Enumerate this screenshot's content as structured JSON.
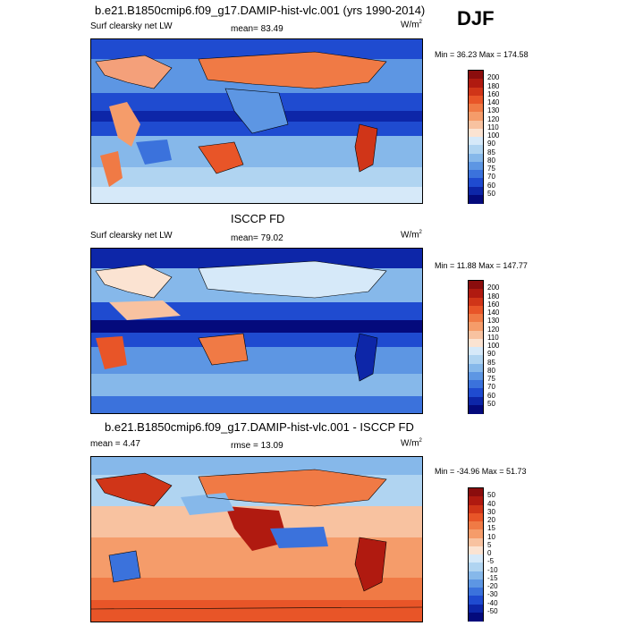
{
  "season": "DJF",
  "panels": [
    {
      "title": "b.e21.B1850cmip6.f09_g17.DAMIP-hist-vlc.001 (yrs 1990-2014)",
      "left": "Surf clearsky net LW",
      "center": "mean=  83.49",
      "units": "W/m",
      "units_sup": "2",
      "minmax": "Min =  36.23 Max = 174.58",
      "levels": [
        "200",
        "180",
        "160",
        "140",
        "130",
        "120",
        "110",
        "100",
        "90",
        "85",
        "80",
        "75",
        "70",
        "60",
        "50"
      ]
    },
    {
      "title": "ISCCP FD",
      "left": "Surf clearsky net LW",
      "center": "mean=  79.02",
      "units": "W/m",
      "units_sup": "2",
      "minmax": "Min =  11.88 Max = 147.77",
      "levels": [
        "200",
        "180",
        "160",
        "140",
        "130",
        "120",
        "110",
        "100",
        "90",
        "85",
        "80",
        "75",
        "70",
        "60",
        "50"
      ]
    },
    {
      "title": "b.e21.B1850cmip6.f09_g17.DAMIP-hist-vlc.001 - ISCCP FD",
      "left": "mean =  4.47",
      "center": "rmse =  13.09",
      "units": "W/m",
      "units_sup": "2",
      "minmax": "Min = -34.96 Max =  51.73",
      "levels": [
        "50",
        "40",
        "30",
        "20",
        "15",
        "10",
        "5",
        "0",
        "-5",
        "-10",
        "-15",
        "-20",
        "-30",
        "-40",
        "-50"
      ]
    }
  ],
  "colors": {
    "scale": [
      "#8b0d0d",
      "#b01a10",
      "#d03518",
      "#e85528",
      "#f07a45",
      "#f59c6a",
      "#f8c2a0",
      "#fbe3d2",
      "#d6e9f9",
      "#b0d4f1",
      "#86b8ea",
      "#5d96e3",
      "#3b72dc",
      "#1f4bd0",
      "#0d26a8",
      "#040a7c"
    ],
    "ocean": "#a8d0ee",
    "land_warm": "#f4a07a",
    "diff_warm": "#e8562d"
  }
}
